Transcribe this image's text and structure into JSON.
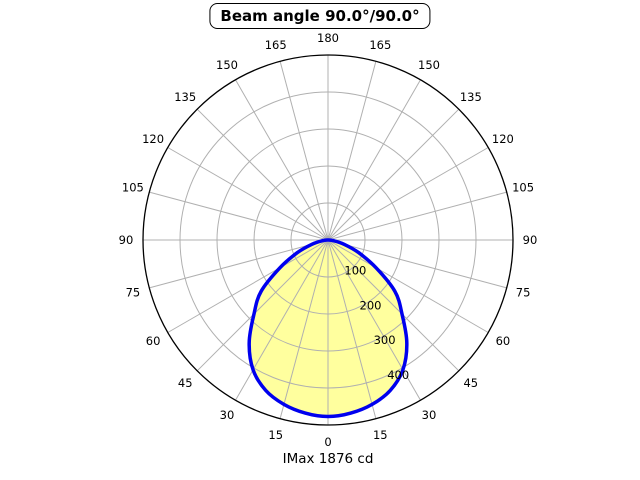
{
  "title": "Beam angle 90.0°/90.0°",
  "caption": "IMax 1876 cd",
  "colors": {
    "curve": "#0000ee",
    "fill": "#ffff9e",
    "grid": "#b0b0b0",
    "axis": "#000000",
    "background": "#ffffff"
  },
  "chart_data": {
    "type": "polar-line",
    "title": "Beam angle 90.0°/90.0°",
    "caption": "IMax 1876 cd",
    "imax_cd": 1876,
    "beam_angle": "90.0°/90.0°",
    "legend": "none",
    "grid": "on",
    "r_axis": {
      "max": 500,
      "rings": [
        100,
        200,
        300,
        400,
        500
      ],
      "tick_labels": [
        "100",
        "200",
        "300",
        "400"
      ]
    },
    "angle_axis": {
      "spoke_step_deg": 15,
      "zero_position": "bottom",
      "labels": [
        {
          "deg": 0,
          "text": "0"
        },
        {
          "deg": 15,
          "text": "15"
        },
        {
          "deg": -15,
          "text": "15"
        },
        {
          "deg": 30,
          "text": "30"
        },
        {
          "deg": -30,
          "text": "30"
        },
        {
          "deg": 45,
          "text": "45"
        },
        {
          "deg": -45,
          "text": "45"
        },
        {
          "deg": 60,
          "text": "60"
        },
        {
          "deg": -60,
          "text": "60"
        },
        {
          "deg": 75,
          "text": "75"
        },
        {
          "deg": -75,
          "text": "75"
        },
        {
          "deg": 90,
          "text": "90"
        },
        {
          "deg": -90,
          "text": "90"
        },
        {
          "deg": 105,
          "text": "105"
        },
        {
          "deg": -105,
          "text": "105"
        },
        {
          "deg": 120,
          "text": "120"
        },
        {
          "deg": -120,
          "text": "120"
        },
        {
          "deg": 135,
          "text": "135"
        },
        {
          "deg": -135,
          "text": "135"
        },
        {
          "deg": 150,
          "text": "150"
        },
        {
          "deg": -150,
          "text": "150"
        },
        {
          "deg": 165,
          "text": "165"
        },
        {
          "deg": -165,
          "text": "165"
        },
        {
          "deg": 180,
          "text": "180"
        }
      ]
    },
    "series": [
      {
        "name": "luminous-intensity-distribution",
        "symmetric": true,
        "angles_deg": [
          0,
          7.5,
          15,
          22.5,
          30,
          37.5,
          45,
          52.5,
          60,
          67.5,
          75,
          82.5,
          90
        ],
        "values": [
          477,
          472,
          460,
          440,
          405,
          350,
          283,
          228,
          150,
          90,
          45,
          15,
          0
        ]
      }
    ]
  }
}
